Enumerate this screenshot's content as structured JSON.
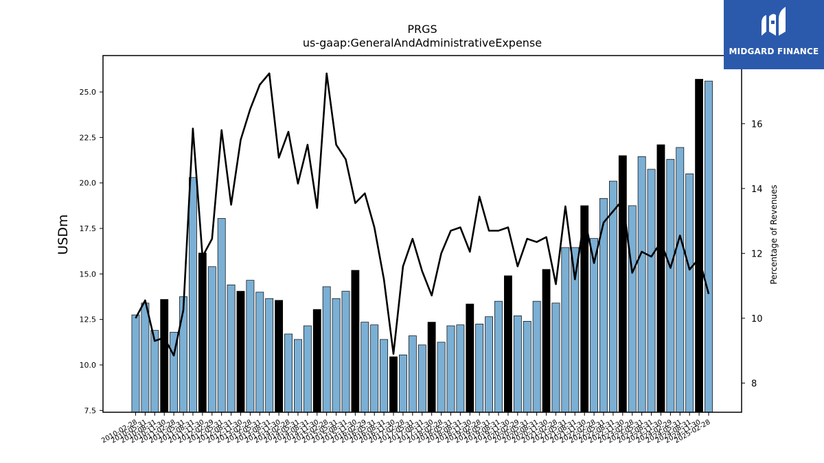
{
  "chart_data": {
    "type": "bar",
    "title": "PRGS",
    "subtitle": "us-gaap:GeneralAndAdministrativeExpense",
    "ylabel": "USDm",
    "y2label": "Percentage of Revenues",
    "ylim": [
      7.4,
      27.0
    ],
    "y2lim": [
      7.1,
      18.1
    ],
    "yticks": [
      "7.5",
      "10.0",
      "12.5",
      "15.0",
      "17.5",
      "20.0",
      "22.5",
      "25.0"
    ],
    "y2ticks": [
      "8",
      "10",
      "12",
      "14",
      "16"
    ],
    "categories": [
      "2010-02-28",
      "2010-05-31",
      "2010-08-31",
      "2010-11-30",
      "2011-02-28",
      "2011-05-31",
      "2011-08-31",
      "2011-11-30",
      "2012-02-29",
      "2012-05-31",
      "2012-08-31",
      "2012-11-30",
      "2013-02-28",
      "2013-05-31",
      "2013-08-31",
      "2013-11-30",
      "2014-02-28",
      "2014-05-31",
      "2014-08-31",
      "2014-11-30",
      "2015-02-28",
      "2015-05-31",
      "2015-08-31",
      "2015-11-30",
      "2016-02-29",
      "2016-05-31",
      "2016-08-31",
      "2016-11-30",
      "2017-02-28",
      "2017-05-31",
      "2017-08-31",
      "2017-11-30",
      "2018-02-28",
      "2018-05-31",
      "2018-08-31",
      "2018-11-30",
      "2019-02-28",
      "2019-05-31",
      "2019-08-31",
      "2019-11-30",
      "2020-02-29",
      "2020-05-31",
      "2020-08-31",
      "2020-11-30",
      "2021-02-28",
      "2021-05-31",
      "2021-08-31",
      "2021-11-30",
      "2022-02-28",
      "2022-05-31",
      "2022-08-31",
      "2022-11-30",
      "2023-02-28",
      "2023-05-31",
      "2023-08-31",
      "2023-11-30",
      "2024-02-29",
      "2024-05-31",
      "2024-08-31",
      "2024-11-30",
      "2025-02-28"
    ],
    "xtick_labels": [
      "2010-02-28",
      "2010-05-31",
      "2010-08-31",
      "2010-11-30",
      "2011-02-28",
      "2011-05-31",
      "2011-08-31",
      "2011-11-30",
      "2012-02-29",
      "2012-05-31",
      "2012-08-31",
      "2012-11-30",
      "2013-02-28",
      "2013-05-31",
      "2013-08-31",
      "2013-11-30",
      "2014-02-28",
      "2014-05-31",
      "2014-08-31",
      "2014-11-30",
      "2015-02-28",
      "2015-05-31",
      "2015-08-31",
      "2015-11-30",
      "2016-02-29",
      "2016-05-31",
      "2016-08-31",
      "2016-11-30",
      "2017-02-28",
      "2017-05-31",
      "2017-08-31",
      "2017-11-30",
      "2018-02-28",
      "2018-05-31",
      "2018-08-31",
      "2018-11-30",
      "2019-02-28",
      "2019-05-31",
      "2019-08-31",
      "2019-11-30",
      "2020-02-29",
      "2020-05-31",
      "2020-08-31",
      "2020-11-30",
      "2021-02-28",
      "2021-05-31",
      "2021-08-31",
      "2021-11-30",
      "2022-02-28",
      "2022-05-31",
      "2022-08-31",
      "2022-11-30",
      "2023-02-28",
      "2023-05-31",
      "2023-08-31",
      "2023-11-30",
      "2024-02-29",
      "2024-05-31",
      "2024-08-31",
      "2024-11-30",
      "2025-02-28"
    ],
    "series": [
      {
        "values": [
          12.75,
          13.4,
          11.9,
          13.6,
          11.8,
          13.75,
          20.3,
          16.15,
          15.4,
          18.05,
          14.4,
          14.05,
          14.65,
          14.0,
          13.65,
          13.55,
          11.7,
          11.4,
          12.15,
          13.05,
          14.3,
          13.65,
          14.05,
          15.2,
          12.35,
          12.2,
          11.4,
          10.45,
          10.55,
          11.6,
          11.1,
          12.35,
          11.25,
          12.15,
          12.2,
          13.35,
          12.25,
          12.65,
          13.5,
          14.9,
          12.7,
          12.4,
          13.5,
          15.25,
          13.4,
          16.45,
          16.45,
          18.75,
          16.95,
          19.15,
          20.1,
          21.5,
          18.75,
          21.45,
          20.75,
          22.1,
          21.3,
          21.95,
          20.5,
          25.7,
          25.6
        ],
        "colors": [
          "#7bafd4",
          "#7bafd4",
          "#7bafd4",
          "#000000",
          "#7bafd4",
          "#7bafd4",
          "#7bafd4",
          "#000000",
          "#7bafd4",
          "#7bafd4",
          "#7bafd4",
          "#000000",
          "#7bafd4",
          "#7bafd4",
          "#7bafd4",
          "#000000",
          "#7bafd4",
          "#7bafd4",
          "#7bafd4",
          "#000000",
          "#7bafd4",
          "#7bafd4",
          "#7bafd4",
          "#000000",
          "#7bafd4",
          "#7bafd4",
          "#7bafd4",
          "#000000",
          "#7bafd4",
          "#7bafd4",
          "#7bafd4",
          "#000000",
          "#7bafd4",
          "#7bafd4",
          "#7bafd4",
          "#000000",
          "#7bafd4",
          "#7bafd4",
          "#7bafd4",
          "#000000",
          "#7bafd4",
          "#7bafd4",
          "#7bafd4",
          "#000000",
          "#7bafd4",
          "#7bafd4",
          "#7bafd4",
          "#000000",
          "#7bafd4",
          "#7bafd4",
          "#7bafd4",
          "#000000",
          "#7bafd4",
          "#7bafd4",
          "#7bafd4",
          "#000000",
          "#7bafd4",
          "#7bafd4",
          "#7bafd4",
          "#000000",
          "#7bafd4"
        ]
      },
      {
        "type": "line",
        "axis": "right",
        "color": "#000000",
        "values": [
          10.0,
          10.55,
          9.3,
          9.4,
          8.85,
          10.25,
          15.85,
          11.9,
          12.45,
          15.8,
          13.5,
          15.5,
          16.45,
          17.2,
          17.55,
          14.95,
          15.75,
          14.15,
          15.35,
          13.4,
          17.55,
          15.35,
          14.9,
          13.55,
          13.85,
          12.8,
          11.2,
          8.9,
          11.6,
          12.45,
          11.45,
          10.7,
          12.0,
          12.7,
          12.8,
          12.05,
          13.75,
          12.7,
          12.7,
          12.8,
          11.6,
          12.45,
          12.35,
          12.5,
          11.05,
          13.45,
          11.2,
          13.1,
          11.7,
          12.95,
          13.3,
          13.65,
          11.4,
          12.05,
          11.9,
          12.35,
          11.55,
          12.55,
          11.5,
          11.85,
          10.75
        ]
      }
    ],
    "colors": {
      "accent": "#7bafd4",
      "highlight": "#000000",
      "logo_bg": "#2b5aac"
    },
    "grid": false
  },
  "logo": {
    "text": "MIDGARD FINANCE",
    "icon": "midgard-m-icon"
  }
}
